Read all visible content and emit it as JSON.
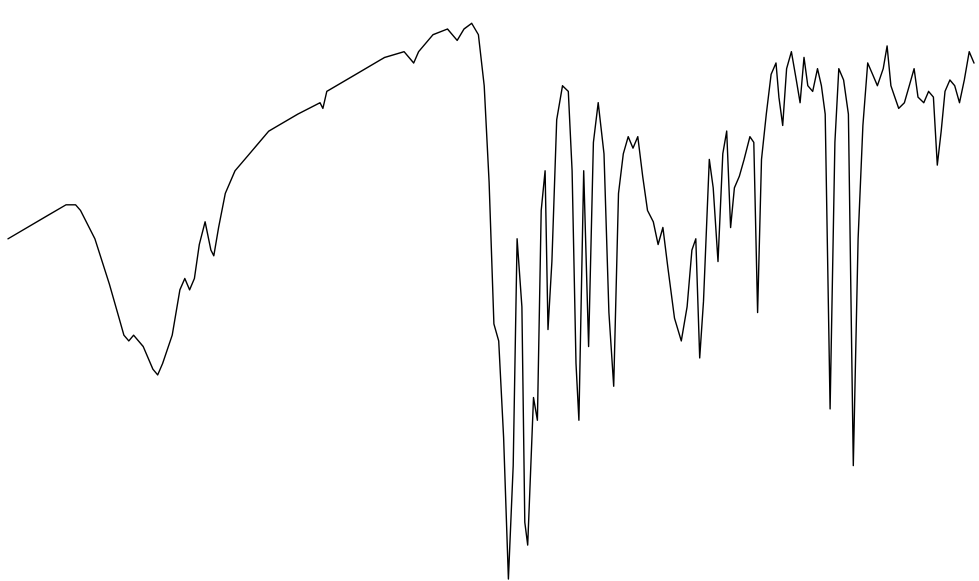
{
  "chart_data": {
    "type": "line",
    "title": "",
    "xlabel": "",
    "ylabel": "",
    "grid": false,
    "axes_visible": false,
    "xlim": [
      0,
      1
    ],
    "ylim": [
      0,
      1
    ],
    "line_color": "#000000",
    "background_color": "#ffffff",
    "series": [
      {
        "values_note": "",
        "points": [
          [
            0.0,
            0.6
          ],
          [
            0.04,
            0.64
          ],
          [
            0.06,
            0.66
          ],
          [
            0.07,
            0.66
          ],
          [
            0.075,
            0.65
          ],
          [
            0.09,
            0.6
          ],
          [
            0.105,
            0.52
          ],
          [
            0.115,
            0.46
          ],
          [
            0.12,
            0.43
          ],
          [
            0.125,
            0.42
          ],
          [
            0.13,
            0.43
          ],
          [
            0.14,
            0.41
          ],
          [
            0.15,
            0.37
          ],
          [
            0.155,
            0.36
          ],
          [
            0.16,
            0.38
          ],
          [
            0.17,
            0.43
          ],
          [
            0.178,
            0.51
          ],
          [
            0.183,
            0.53
          ],
          [
            0.188,
            0.51
          ],
          [
            0.193,
            0.53
          ],
          [
            0.198,
            0.59
          ],
          [
            0.204,
            0.63
          ],
          [
            0.21,
            0.58
          ],
          [
            0.213,
            0.57
          ],
          [
            0.218,
            0.62
          ],
          [
            0.225,
            0.68
          ],
          [
            0.235,
            0.72
          ],
          [
            0.25,
            0.75
          ],
          [
            0.27,
            0.79
          ],
          [
            0.3,
            0.82
          ],
          [
            0.323,
            0.84
          ],
          [
            0.326,
            0.83
          ],
          [
            0.33,
            0.86
          ],
          [
            0.36,
            0.89
          ],
          [
            0.39,
            0.92
          ],
          [
            0.41,
            0.93
          ],
          [
            0.42,
            0.91
          ],
          [
            0.425,
            0.93
          ],
          [
            0.44,
            0.96
          ],
          [
            0.455,
            0.97
          ],
          [
            0.465,
            0.95
          ],
          [
            0.472,
            0.97
          ],
          [
            0.48,
            0.98
          ],
          [
            0.487,
            0.96
          ],
          [
            0.493,
            0.87
          ],
          [
            0.498,
            0.7
          ],
          [
            0.503,
            0.45
          ],
          [
            0.508,
            0.42
          ],
          [
            0.513,
            0.25
          ],
          [
            0.518,
            0.0
          ],
          [
            0.523,
            0.2
          ],
          [
            0.527,
            0.6
          ],
          [
            0.532,
            0.48
          ],
          [
            0.535,
            0.1
          ],
          [
            0.538,
            0.06
          ],
          [
            0.544,
            0.32
          ],
          [
            0.548,
            0.28
          ],
          [
            0.552,
            0.65
          ],
          [
            0.556,
            0.72
          ],
          [
            0.559,
            0.44
          ],
          [
            0.563,
            0.56
          ],
          [
            0.568,
            0.81
          ],
          [
            0.574,
            0.87
          ],
          [
            0.58,
            0.86
          ],
          [
            0.584,
            0.72
          ],
          [
            0.588,
            0.38
          ],
          [
            0.591,
            0.28
          ],
          [
            0.596,
            0.72
          ],
          [
            0.601,
            0.41
          ],
          [
            0.606,
            0.77
          ],
          [
            0.611,
            0.84
          ],
          [
            0.617,
            0.75
          ],
          [
            0.622,
            0.47
          ],
          [
            0.627,
            0.34
          ],
          [
            0.632,
            0.68
          ],
          [
            0.637,
            0.75
          ],
          [
            0.642,
            0.78
          ],
          [
            0.647,
            0.76
          ],
          [
            0.652,
            0.78
          ],
          [
            0.657,
            0.71
          ],
          [
            0.662,
            0.65
          ],
          [
            0.668,
            0.63
          ],
          [
            0.673,
            0.59
          ],
          [
            0.678,
            0.62
          ],
          [
            0.683,
            0.55
          ],
          [
            0.69,
            0.46
          ],
          [
            0.697,
            0.42
          ],
          [
            0.703,
            0.48
          ],
          [
            0.708,
            0.58
          ],
          [
            0.712,
            0.6
          ],
          [
            0.716,
            0.39
          ],
          [
            0.72,
            0.49
          ],
          [
            0.726,
            0.74
          ],
          [
            0.73,
            0.69
          ],
          [
            0.735,
            0.56
          ],
          [
            0.74,
            0.75
          ],
          [
            0.744,
            0.79
          ],
          [
            0.748,
            0.62
          ],
          [
            0.752,
            0.69
          ],
          [
            0.757,
            0.71
          ],
          [
            0.762,
            0.74
          ],
          [
            0.768,
            0.78
          ],
          [
            0.772,
            0.77
          ],
          [
            0.776,
            0.47
          ],
          [
            0.78,
            0.74
          ],
          [
            0.785,
            0.82
          ],
          [
            0.79,
            0.89
          ],
          [
            0.795,
            0.91
          ],
          [
            0.798,
            0.85
          ],
          [
            0.802,
            0.8
          ],
          [
            0.806,
            0.9
          ],
          [
            0.811,
            0.93
          ],
          [
            0.816,
            0.88
          ],
          [
            0.82,
            0.84
          ],
          [
            0.824,
            0.92
          ],
          [
            0.828,
            0.87
          ],
          [
            0.833,
            0.86
          ],
          [
            0.838,
            0.9
          ],
          [
            0.842,
            0.87
          ],
          [
            0.846,
            0.82
          ],
          [
            0.851,
            0.3
          ],
          [
            0.856,
            0.77
          ],
          [
            0.86,
            0.9
          ],
          [
            0.865,
            0.88
          ],
          [
            0.87,
            0.82
          ],
          [
            0.875,
            0.2
          ],
          [
            0.88,
            0.6
          ],
          [
            0.885,
            0.8
          ],
          [
            0.89,
            0.91
          ],
          [
            0.895,
            0.89
          ],
          [
            0.9,
            0.87
          ],
          [
            0.906,
            0.9
          ],
          [
            0.91,
            0.94
          ],
          [
            0.914,
            0.87
          ],
          [
            0.918,
            0.85
          ],
          [
            0.922,
            0.83
          ],
          [
            0.928,
            0.84
          ],
          [
            0.933,
            0.87
          ],
          [
            0.938,
            0.9
          ],
          [
            0.942,
            0.85
          ],
          [
            0.948,
            0.84
          ],
          [
            0.953,
            0.86
          ],
          [
            0.958,
            0.85
          ],
          [
            0.962,
            0.73
          ],
          [
            0.966,
            0.79
          ],
          [
            0.97,
            0.86
          ],
          [
            0.975,
            0.88
          ],
          [
            0.98,
            0.87
          ],
          [
            0.985,
            0.84
          ],
          [
            0.99,
            0.88
          ],
          [
            0.995,
            0.93
          ],
          [
            1.0,
            0.91
          ]
        ]
      }
    ]
  }
}
